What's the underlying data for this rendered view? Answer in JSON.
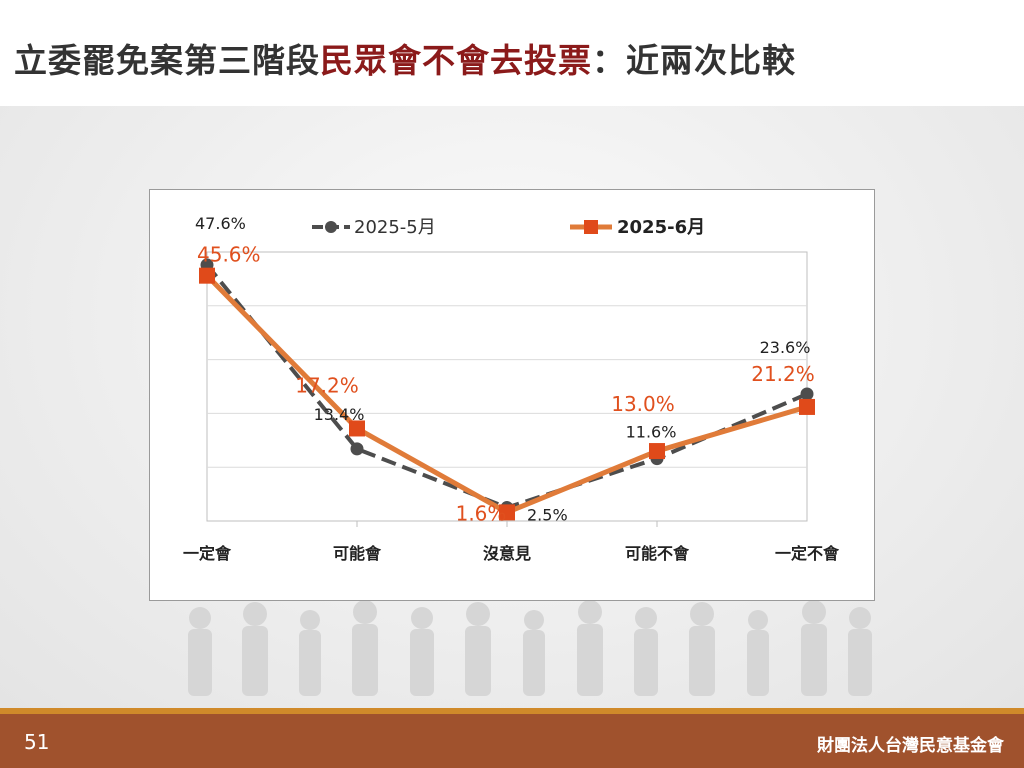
{
  "title": {
    "part1": "立委罷免案第三階段",
    "part2": "民眾會不會去投票",
    "part3": "：近兩次比較"
  },
  "footer": {
    "page_number": "51",
    "organization": "財團法人台灣民意基金會"
  },
  "colors": {
    "series1": "#4d4d4d",
    "series2": "#e07b39",
    "series2_marker": "#e04a1a",
    "series2_label": "#e0501e",
    "title_highlight": "#8b1a1a",
    "footer": "#a0522d",
    "footer_stripe": "#d08a2a"
  },
  "chart_data": {
    "type": "line",
    "categories": [
      "一定會",
      "可能會",
      "沒意見",
      "可能不會",
      "一定不會"
    ],
    "series": [
      {
        "name": "2025-5月",
        "values": [
          47.6,
          13.4,
          2.5,
          11.6,
          23.6
        ],
        "labels": [
          "47.6%",
          "13.4%",
          "2.5%",
          "11.6%",
          "23.6%"
        ],
        "style": "dashed-circle"
      },
      {
        "name": "2025-6月",
        "values": [
          45.6,
          17.2,
          1.6,
          13.0,
          21.2
        ],
        "labels": [
          "45.6%",
          "17.2%",
          "1.6%",
          "13.0%",
          "21.2%"
        ],
        "style": "solid-square"
      }
    ],
    "ylim": [
      0,
      50
    ],
    "grid": true,
    "legend": "top"
  }
}
